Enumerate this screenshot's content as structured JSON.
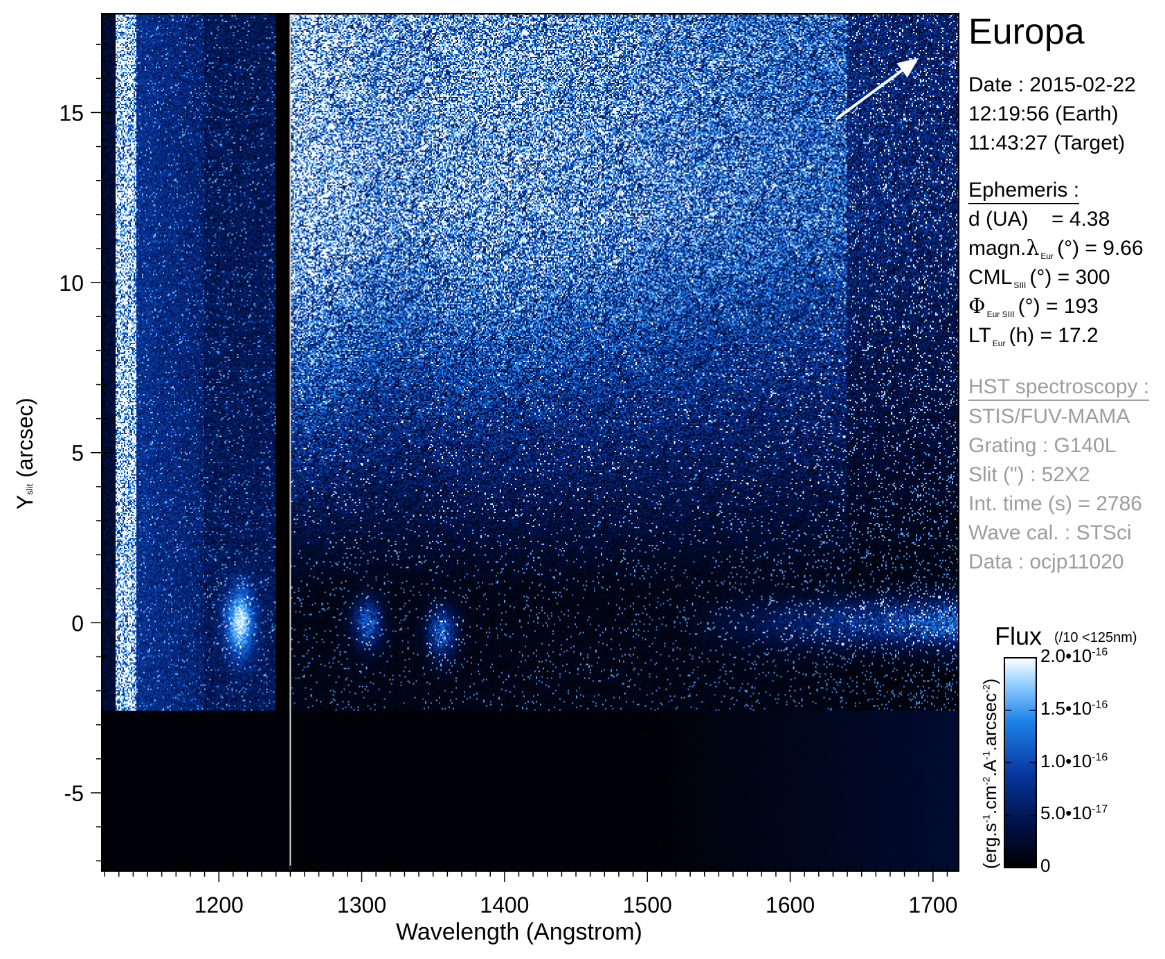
{
  "chart_data": {
    "type": "heatmap",
    "title": "Europa",
    "xlabel": "Wavelength (Angstrom)",
    "ylabel": {
      "main": "Y",
      "subscript": "slit",
      "unit": "(arcsec)"
    },
    "xlim": [
      1118,
      1718
    ],
    "ylim": [
      -7.3,
      17.9
    ],
    "x_ticks": [
      1200,
      1300,
      1400,
      1500,
      1600,
      1700
    ],
    "y_ticks": [
      -5,
      0,
      5,
      10,
      15
    ],
    "x_tick_labels": [
      "1200",
      "1300",
      "1400",
      "1500",
      "1600",
      "1700"
    ],
    "y_tick_labels": [
      "-5",
      "0",
      "5",
      "10",
      "15"
    ],
    "colorbar": {
      "title": "Flux",
      "note": "(/10 <125nm)",
      "unit": "(erg.s-1.cm-2.A-1.arcsec-2)",
      "range": [
        0,
        2e-16
      ],
      "ticks": [
        0,
        5e-17,
        1e-16,
        1.5e-16,
        2e-16
      ],
      "tick_labels": [
        {
          "value": 0,
          "mantissa": "0",
          "exponent": ""
        },
        {
          "value": 5e-17,
          "mantissa": "5.0•10",
          "exponent": "-17"
        },
        {
          "value": 1e-16,
          "mantissa": "1.0•10",
          "exponent": "-16"
        },
        {
          "value": 1.5e-16,
          "mantissa": "1.5•10",
          "exponent": "-16"
        },
        {
          "value": 2e-16,
          "mantissa": "2.0•10",
          "exponent": "-16"
        }
      ],
      "colors": [
        "#000000",
        "#001a55",
        "#0a3fa8",
        "#1a78e6",
        "#7cc4ff",
        "#ffffff"
      ]
    },
    "features": {
      "slit_edge_y": -2.6,
      "lyman_alpha_band_x": [
        1190,
        1240
      ],
      "separator_x": 1250,
      "bright_edge_x": [
        1120,
        1142
      ],
      "emission_rows_y": 0,
      "emission_spots": [
        {
          "x": 1215,
          "y": 0
        },
        {
          "x": 1304,
          "y": 0
        },
        {
          "x": 1356,
          "y": -0.3
        }
      ],
      "arrow": {
        "from": [
          1632,
          14.8
        ],
        "to": [
          1690,
          16.6
        ]
      }
    }
  },
  "panel": {
    "target": "Europa",
    "date_line": "Date : 2015-02-22",
    "earth_time": "12:19:56 (Earth)",
    "target_time": "11:43:27 (Target)",
    "ephemeris_heading": "Ephemeris :",
    "ephemeris": [
      {
        "label": "d (UA)",
        "sym": "",
        "sub": "",
        "unit": "",
        "value": "= 4.38"
      },
      {
        "label": "magn. ",
        "sym": "λ",
        "sub": "Eur",
        "unit": "(°)",
        "value": "= 9.66"
      },
      {
        "label": "CML",
        "sym": "",
        "sub": "SIII",
        "unit": "(°)",
        "value": "= 300"
      },
      {
        "label": "",
        "sym": "Φ",
        "sub": "Eur SIII",
        "unit": "(°)",
        "value": "= 193"
      },
      {
        "label": "LT",
        "sym": "",
        "sub": "Eur",
        "unit": "(h)",
        "value": "= 17.2"
      }
    ],
    "hst_heading": "HST spectroscopy :",
    "hst_lines": [
      "STIS/FUV-MAMA",
      "Grating : G140L",
      "Slit (\") : 52X2",
      "Int. time (s) = 2786",
      "Wave cal. : STSci",
      "Data : ocjp11020"
    ]
  }
}
